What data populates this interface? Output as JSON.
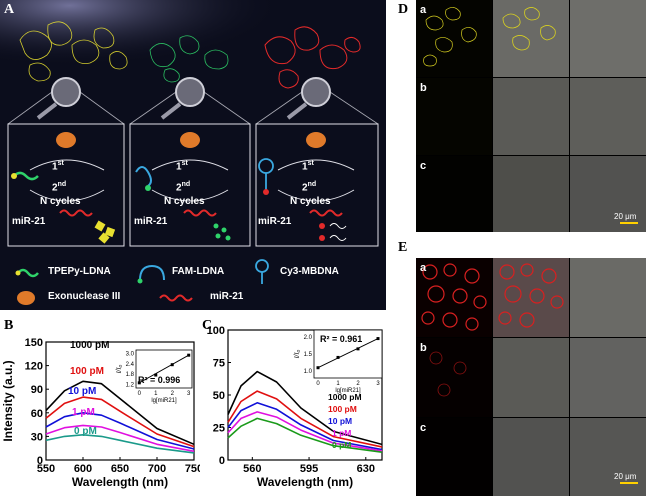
{
  "panel_labels": {
    "A": "A",
    "B": "B",
    "C": "C",
    "D": "D",
    "E": "E"
  },
  "panelA": {
    "cycle_1": "1",
    "cycle_1_sup": "st",
    "cycle_2": "2",
    "cycle_2_sup": "nd",
    "n_cycles": "N cycles",
    "mirna": "miR-21",
    "legend": [
      "TPEPy-LDNA",
      "FAM-LDNA",
      "Cy3-MBDNA",
      "Exonuclease III",
      "miR-21"
    ],
    "colors": {
      "yellow": "#e8e030",
      "green": "#2fd36a",
      "red": "#e22a2a",
      "cyan": "#3aa8e0",
      "orange": "#e07a2a"
    }
  },
  "subpanel_rows": [
    "a",
    "b",
    "c"
  ],
  "scale_bar": "20 μm",
  "chart_data": [
    {
      "type": "line",
      "panel": "B",
      "xlabel": "Wavelength (nm)",
      "ylabel": "Intensity (a.u.)",
      "xlim": [
        550,
        750
      ],
      "ylim": [
        0,
        150
      ],
      "xticks": [
        550,
        600,
        650,
        700,
        750
      ],
      "yticks": [
        0,
        30,
        60,
        90,
        120,
        150
      ],
      "series": [
        {
          "name": "1000 pM",
          "color": "#000000",
          "x": [
            550,
            575,
            600,
            625,
            650,
            700,
            750
          ],
          "y": [
            63,
            88,
            100,
            97,
            78,
            40,
            20
          ]
        },
        {
          "name": "100 pM",
          "color": "#e01010",
          "x": [
            550,
            575,
            600,
            625,
            650,
            700,
            750
          ],
          "y": [
            53,
            72,
            80,
            77,
            62,
            33,
            17
          ]
        },
        {
          "name": "10 pM",
          "color": "#1010d8",
          "x": [
            550,
            575,
            600,
            625,
            650,
            700,
            750
          ],
          "y": [
            42,
            55,
            60,
            57,
            47,
            26,
            14
          ]
        },
        {
          "name": "1 pM",
          "color": "#e010e0",
          "x": [
            550,
            575,
            600,
            625,
            650,
            700,
            750
          ],
          "y": [
            33,
            41,
            44,
            42,
            35,
            20,
            11
          ]
        },
        {
          "name": "0 pM",
          "color": "#1a9a8a",
          "x": [
            550,
            575,
            600,
            625,
            650,
            700,
            750
          ],
          "y": [
            25,
            30,
            32,
            30,
            25,
            15,
            9
          ]
        }
      ],
      "inset": {
        "r2": "R² = 0.996",
        "xlabel": "lg[miR21]",
        "ylabel": "I/I₀",
        "xticks": [
          0,
          1,
          2,
          3
        ],
        "yticks": [
          1.2,
          1.8,
          2.4,
          3.0
        ],
        "x": [
          0,
          1,
          2,
          3
        ],
        "y": [
          1.3,
          1.75,
          2.35,
          2.9
        ]
      }
    },
    {
      "type": "line",
      "panel": "C",
      "xlabel": "Wavelength (nm)",
      "ylabel": "",
      "xlim": [
        545,
        640
      ],
      "ylim": [
        0,
        100
      ],
      "xticks": [
        560,
        595,
        630
      ],
      "yticks": [
        0,
        25,
        50,
        75,
        100
      ],
      "series": [
        {
          "name": "1000 pM",
          "color": "#000000",
          "x": [
            545,
            553,
            563,
            575,
            590,
            610,
            640
          ],
          "y": [
            35,
            57,
            68,
            60,
            40,
            22,
            12
          ]
        },
        {
          "name": "100 pM",
          "color": "#e01010",
          "x": [
            545,
            553,
            563,
            575,
            590,
            610,
            640
          ],
          "y": [
            29,
            45,
            53,
            47,
            32,
            18,
            10
          ]
        },
        {
          "name": "10 pM",
          "color": "#1010d8",
          "x": [
            545,
            553,
            563,
            575,
            590,
            610,
            640
          ],
          "y": [
            25,
            38,
            44,
            39,
            27,
            15,
            8
          ]
        },
        {
          "name": "1 pM",
          "color": "#e010e0",
          "x": [
            545,
            553,
            563,
            575,
            590,
            610,
            640
          ],
          "y": [
            21,
            32,
            37,
            33,
            23,
            13,
            7
          ]
        },
        {
          "name": "0 pM",
          "color": "#1a9a1a",
          "x": [
            545,
            553,
            563,
            575,
            590,
            610,
            640
          ],
          "y": [
            17,
            26,
            32,
            28,
            19,
            11,
            6
          ]
        }
      ],
      "inset": {
        "r2": "R² = 0.961",
        "xlabel": "lg[miR21]",
        "ylabel": "I/I₀",
        "xticks": [
          0,
          1,
          2,
          3
        ],
        "yticks": [
          1.0,
          1.5,
          2.0
        ],
        "x": [
          0,
          1,
          2,
          3
        ],
        "y": [
          1.1,
          1.4,
          1.65,
          1.95
        ]
      }
    }
  ]
}
